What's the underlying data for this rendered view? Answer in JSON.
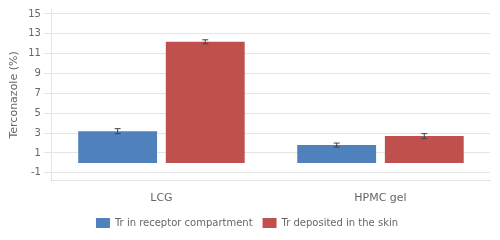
{
  "chart_data": {
    "type": "bar",
    "categories": [
      "LCG",
      "HPMC gel"
    ],
    "series": [
      {
        "name": "Tr in receptor compartment",
        "color": "#4f81bd",
        "values": [
          3.2,
          1.8
        ],
        "errors": [
          0.25,
          0.2
        ]
      },
      {
        "name": "Tr deposited in the skin",
        "color": "#c0504d",
        "values": [
          12.2,
          2.7
        ],
        "errors": [
          0.2,
          0.25
        ]
      }
    ],
    "ylabel": "Terconazole (%)",
    "ylim": [
      -1.8,
      15.5
    ],
    "yticks": [
      -1,
      1,
      3,
      5,
      7,
      9,
      11,
      13,
      15
    ],
    "grid": true,
    "legend": "bottom"
  }
}
